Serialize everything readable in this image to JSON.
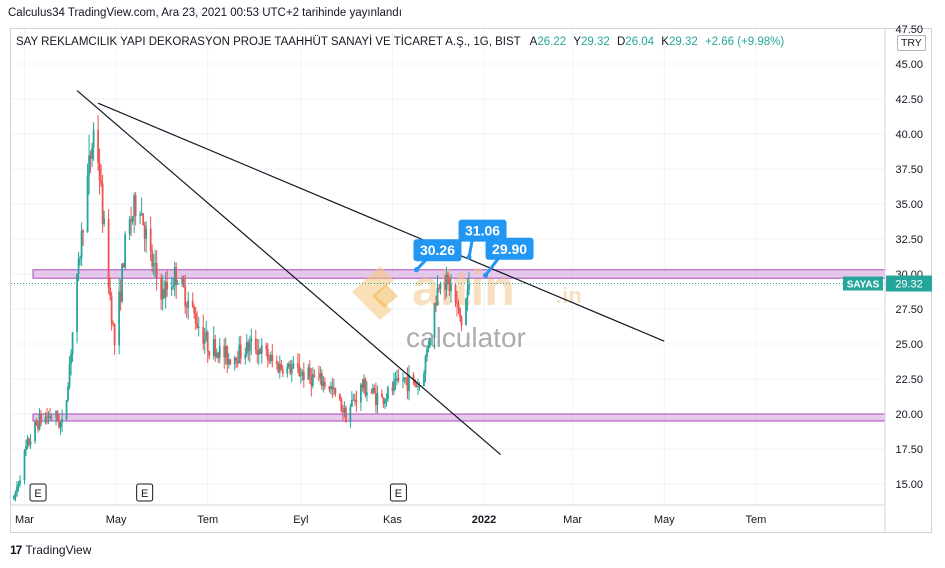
{
  "header": {
    "publish_info": "Calculus34 TradingView.com, Ara 23, 2021 00:53 UTC+2 tarihinde yayınlandı"
  },
  "legend": {
    "symbol": "SAY REKLAMCILIK YAPI DEKORASYON PROJE TAAHHÜT SANAYİ VE TİCARET A.Ş., 1G, BIST",
    "open_label": "A",
    "open": "26.22",
    "high_label": "Y",
    "high": "29.32",
    "low_label": "D",
    "low": "26.04",
    "close_label": "K",
    "close": "29.32",
    "change": "+2.66 (+9.98%)"
  },
  "currency": "TRY",
  "price_tag": {
    "symbol": "SAYAS",
    "value": "29.32"
  },
  "brand": {
    "logo": "17",
    "name": "TradingView"
  },
  "watermark": {
    "logo_text": "altin",
    "suffix": ".in",
    "subtitle": "calculator"
  },
  "colors": {
    "up": "#26a69a",
    "down": "#ef5350",
    "zone": "#ce93d8",
    "callout": "#2196f3",
    "tag": "#26a69a"
  },
  "chart_data": {
    "type": "candlestick",
    "title": "",
    "ylim": [
      13.5,
      47.5
    ],
    "yticks": [
      15,
      17.5,
      20,
      22.5,
      25,
      27.5,
      30,
      32.5,
      35,
      37.5,
      40,
      42.5,
      45
    ],
    "ytick_labels": [
      "15.00",
      "17.50",
      "20.00",
      "22.50",
      "25.00",
      "27.50",
      "30.00",
      "32.50",
      "35.00",
      "37.50",
      "40.00",
      "42.50",
      "45.00"
    ],
    "top_cut_label": "47.50",
    "x_range": [
      "2021-02-20",
      "2022-09-25"
    ],
    "xticks": [
      {
        "date": "2021-03-01",
        "label": "Mar",
        "bold": false
      },
      {
        "date": "2021-05-01",
        "label": "May",
        "bold": false
      },
      {
        "date": "2021-07-01",
        "label": "Tem",
        "bold": false
      },
      {
        "date": "2021-09-01",
        "label": "Eyl",
        "bold": false
      },
      {
        "date": "2021-11-01",
        "label": "Kas",
        "bold": false
      },
      {
        "date": "2022-01-01",
        "label": "2022",
        "bold": true
      },
      {
        "date": "2022-03-01",
        "label": "Mar",
        "bold": false
      },
      {
        "date": "2022-05-01",
        "label": "May",
        "bold": false
      },
      {
        "date": "2022-07-01",
        "label": "Tem",
        "bold": false
      }
    ],
    "anchors": [
      [
        "2021-02-22",
        13.9
      ],
      [
        "2021-03-02",
        17.5
      ],
      [
        "2021-03-10",
        19.5
      ],
      [
        "2021-03-20",
        20.0
      ],
      [
        "2021-03-27",
        19.0
      ],
      [
        "2021-04-03",
        27.0
      ],
      [
        "2021-04-10",
        35.0
      ],
      [
        "2021-04-17",
        41.0
      ],
      [
        "2021-04-23",
        33.0
      ],
      [
        "2021-04-30",
        25.0
      ],
      [
        "2021-05-08",
        33.0
      ],
      [
        "2021-05-16",
        35.5
      ],
      [
        "2021-05-24",
        31.0
      ],
      [
        "2021-06-01",
        28.5
      ],
      [
        "2021-06-10",
        30.0
      ],
      [
        "2021-06-20",
        27.5
      ],
      [
        "2021-07-01",
        25.0
      ],
      [
        "2021-07-15",
        24.0
      ],
      [
        "2021-08-01",
        25.0
      ],
      [
        "2021-08-15",
        23.5
      ],
      [
        "2021-09-01",
        23.0
      ],
      [
        "2021-09-20",
        22.0
      ],
      [
        "2021-10-01",
        20.0
      ],
      [
        "2021-10-12",
        22.0
      ],
      [
        "2021-10-25",
        21.0
      ],
      [
        "2021-11-08",
        22.5
      ],
      [
        "2021-11-20",
        22.0
      ],
      [
        "2021-11-27",
        26.5
      ],
      [
        "2021-12-03",
        30.0
      ],
      [
        "2021-12-10",
        29.0
      ],
      [
        "2021-12-17",
        26.5
      ],
      [
        "2021-12-22",
        29.32
      ]
    ],
    "zones": [
      {
        "from": 29.7,
        "to": 30.3
      },
      {
        "from": 19.5,
        "to": 20.0
      }
    ],
    "trendlines": [
      {
        "start": [
          "2021-04-05",
          43.1
        ],
        "end": [
          "2022-01-12",
          17.1
        ]
      },
      {
        "start": [
          "2021-04-19",
          42.2
        ],
        "end": [
          "2022-05-01",
          25.2
        ]
      }
    ],
    "current_price": 29.32,
    "callouts": [
      {
        "label": "30.26",
        "date": "2021-12-01",
        "value": 31.7,
        "point": [
          "2021-11-17",
          30.3
        ]
      },
      {
        "label": "31.06",
        "date": "2021-12-31",
        "value": 33.1,
        "point": [
          "2021-12-22",
          31.2
        ]
      },
      {
        "label": "29.90",
        "date": "2022-01-18",
        "value": 31.8,
        "point": [
          "2022-01-02",
          29.9
        ]
      }
    ],
    "earnings_markers": [
      {
        "date": "2021-03-10",
        "label": "E"
      },
      {
        "date": "2021-05-20",
        "label": "E"
      },
      {
        "date": "2021-11-05",
        "label": "E"
      }
    ]
  }
}
